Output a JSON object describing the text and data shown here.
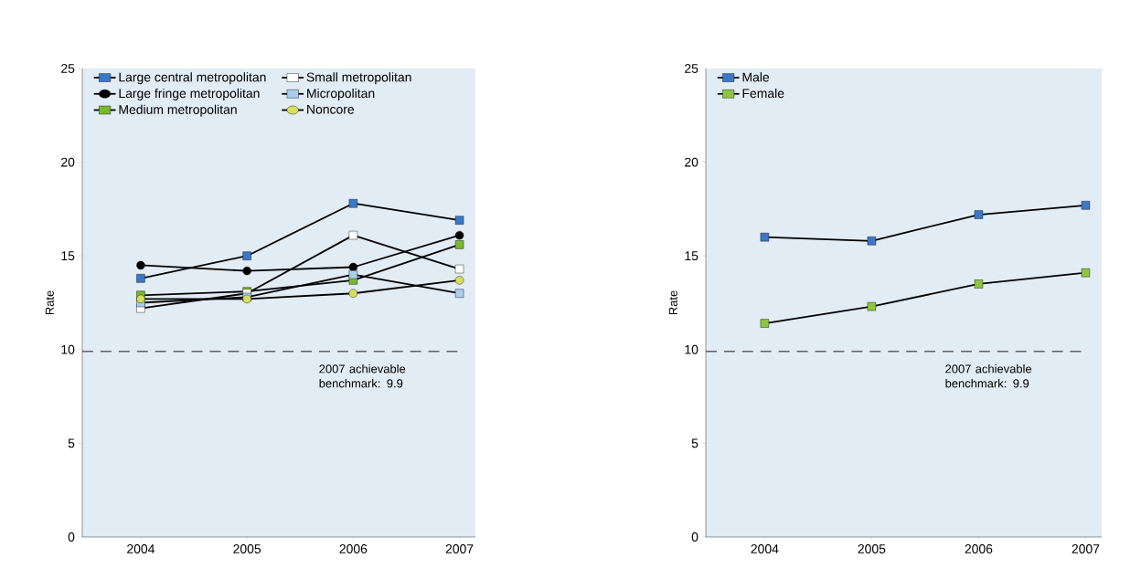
{
  "chart_data": [
    {
      "type": "line",
      "ylabel": "Rate",
      "categories": [
        "2004",
        "2005",
        "2006",
        "2007"
      ],
      "ylim": [
        0,
        25
      ],
      "yticks": [
        0,
        5,
        10,
        15,
        20,
        25
      ],
      "legend": "top left",
      "grid": false,
      "series": [
        {
          "name": "Large central metropolitan",
          "color": "#3a78c8",
          "marker": "square",
          "values": [
            13.8,
            15.0,
            17.8,
            16.9
          ]
        },
        {
          "name": "Large fringe metropolitan",
          "color": "#000000",
          "marker": "circle",
          "values": [
            14.5,
            14.2,
            14.4,
            16.1
          ]
        },
        {
          "name": "Medium metropolitan",
          "color": "#7ab929",
          "marker": "square",
          "values": [
            12.9,
            13.1,
            13.7,
            15.6
          ]
        },
        {
          "name": "Small metropolitan",
          "color": "#ffffff",
          "marker": "square",
          "values": [
            12.2,
            13.0,
            16.1,
            14.3
          ]
        },
        {
          "name": "Micropolitan",
          "color": "#a8d0ec",
          "marker": "square",
          "values": [
            12.5,
            12.8,
            14.0,
            13.0
          ]
        },
        {
          "name": "Noncore",
          "color": "#d4e05a",
          "marker": "circle",
          "values": [
            12.7,
            12.7,
            13.0,
            13.7
          ]
        }
      ],
      "ref_lines": [
        {
          "axis": "y",
          "value": 9.9,
          "label": "2007 achievable benchmark: 9.9",
          "color": "#000000",
          "line_style": "dashed"
        }
      ]
    },
    {
      "type": "line",
      "ylabel": "Rate",
      "categories": [
        "2004",
        "2005",
        "2006",
        "2007"
      ],
      "ylim": [
        0,
        25
      ],
      "yticks": [
        0,
        5,
        10,
        15,
        20,
        25
      ],
      "legend": "top left",
      "grid": false,
      "series": [
        {
          "name": "Male",
          "color": "#3a78c8",
          "marker": "square",
          "values": [
            16.0,
            15.8,
            17.2,
            17.7
          ]
        },
        {
          "name": "Female",
          "color": "#8cc63f",
          "marker": "square",
          "values": [
            11.4,
            12.3,
            13.5,
            14.1
          ]
        }
      ],
      "ref_lines": [
        {
          "axis": "y",
          "value": 9.9,
          "label": "2007 achievable benchmark: 9.9",
          "color": "#000000",
          "line_style": "dashed"
        }
      ]
    }
  ]
}
